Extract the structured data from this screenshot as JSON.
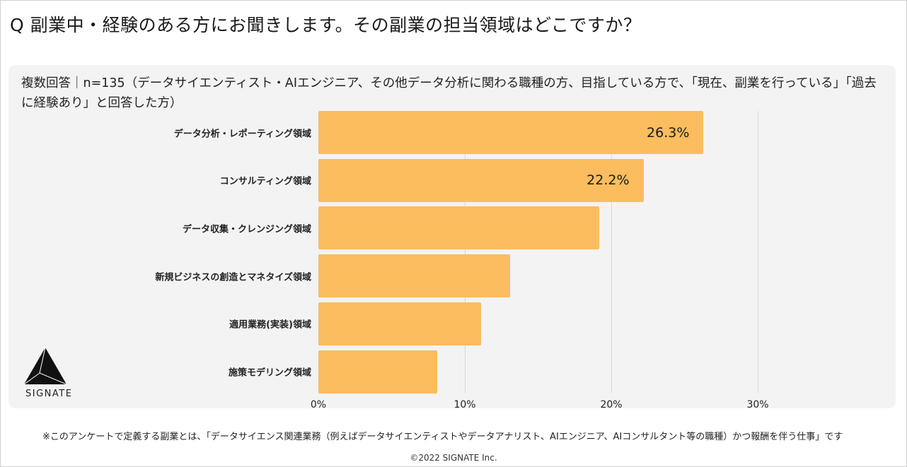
{
  "title": "Q 副業中・経験のある方にお聞きします。その副業の担当領域はどこですか？",
  "subtitle": "複数回答｜n=135（データサイエンティスト・AIエンジニア、その他データ分析に関わる職種の方、目指している方で、「現在、副業を行っている」「過去に経験あり」と回答した方）",
  "chart_data": {
    "type": "bar",
    "orientation": "horizontal",
    "categories": [
      "データ分析・レポーティング領域",
      "コンサルティング領域",
      "データ収集・クレンジング領域",
      "新規ビジネスの創造とマネタイズ領域",
      "適用業務(実装)領域",
      "施策モデリング領域"
    ],
    "values": [
      26.3,
      22.2,
      19.2,
      13.1,
      11.1,
      8.1
    ],
    "data_labels": [
      "26.3%",
      "22.2%",
      null,
      null,
      null,
      null
    ],
    "xlim": [
      0,
      30
    ],
    "xticks": [
      "0%",
      "10%",
      "20%",
      "30%"
    ],
    "grid": true,
    "bar_color": "#fbbd5e"
  },
  "logo": {
    "text": "SIGNATE"
  },
  "footnote": "※このアンケートで定義する副業とは、「データサイエンス関連業務（例えばデータサイエンティストやデータアナリスト、AIエンジニア、AIコンサルタント等の職種）かつ報酬を伴う仕事」です",
  "copyright": "©2022 SIGNATE Inc."
}
